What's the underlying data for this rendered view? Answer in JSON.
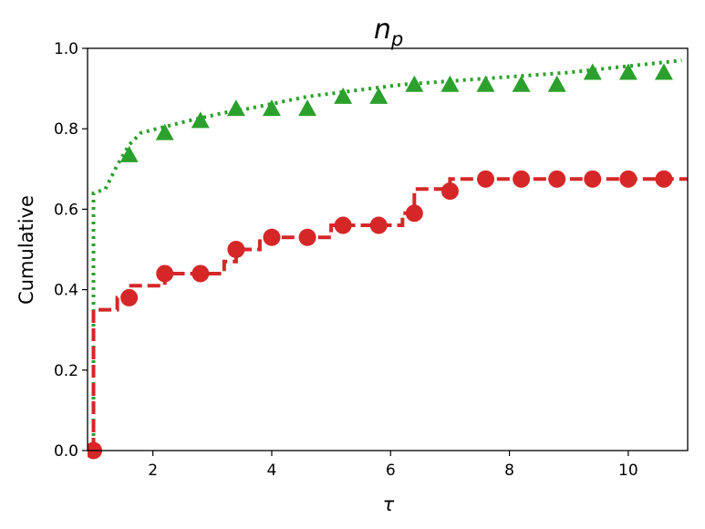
{
  "chart_data": {
    "type": "line",
    "title_main": "n",
    "title_sub": "p",
    "xlabel": "τ",
    "ylabel": "Cumulative",
    "xlim": [
      0.9,
      11.0
    ],
    "ylim": [
      0.0,
      1.0
    ],
    "xticks": [
      2,
      4,
      6,
      8,
      10
    ],
    "xtick_labels": [
      "2",
      "4",
      "6",
      "8",
      "10"
    ],
    "yticks": [
      0.0,
      0.2,
      0.4,
      0.6,
      0.8,
      1.0
    ],
    "ytick_labels": [
      "0.0",
      "0.2",
      "0.4",
      "0.6",
      "0.8",
      "1.0"
    ],
    "grid": false,
    "legend": "none",
    "series": [
      {
        "color": "#2ca02c",
        "line_style": "dotted",
        "marker": "triangle",
        "step": [
          [
            1.0,
            0.0
          ],
          [
            1.0,
            0.35
          ],
          [
            1.0,
            0.64
          ],
          [
            1.2,
            0.65
          ],
          [
            1.4,
            0.71
          ],
          [
            1.6,
            0.76
          ],
          [
            1.8,
            0.79
          ],
          [
            2.6,
            0.82
          ],
          [
            3.2,
            0.84
          ],
          [
            3.6,
            0.85
          ],
          [
            4.6,
            0.88
          ],
          [
            6.2,
            0.91
          ],
          [
            9.0,
            0.94
          ],
          [
            10.9,
            0.97
          ]
        ],
        "markers": [
          [
            1.6,
            0.735
          ],
          [
            2.2,
            0.79
          ],
          [
            2.8,
            0.82
          ],
          [
            3.4,
            0.85
          ],
          [
            4.0,
            0.85
          ],
          [
            4.6,
            0.85
          ],
          [
            5.2,
            0.88
          ],
          [
            5.8,
            0.88
          ],
          [
            6.4,
            0.91
          ],
          [
            7.0,
            0.91
          ],
          [
            7.6,
            0.91
          ],
          [
            8.2,
            0.91
          ],
          [
            8.8,
            0.91
          ],
          [
            9.4,
            0.94
          ],
          [
            10.0,
            0.94
          ],
          [
            10.6,
            0.94
          ]
        ]
      },
      {
        "color": "#d62728",
        "line_style": "dashed",
        "marker": "circle",
        "step": [
          [
            1.0,
            0.0
          ],
          [
            1.0,
            0.35
          ],
          [
            1.4,
            0.35
          ],
          [
            1.4,
            0.38
          ],
          [
            1.6,
            0.38
          ],
          [
            1.6,
            0.41
          ],
          [
            2.2,
            0.41
          ],
          [
            2.2,
            0.44
          ],
          [
            3.2,
            0.44
          ],
          [
            3.2,
            0.47
          ],
          [
            3.4,
            0.47
          ],
          [
            3.4,
            0.5
          ],
          [
            3.8,
            0.5
          ],
          [
            3.8,
            0.53
          ],
          [
            5.0,
            0.53
          ],
          [
            5.0,
            0.56
          ],
          [
            6.2,
            0.56
          ],
          [
            6.2,
            0.59
          ],
          [
            6.4,
            0.59
          ],
          [
            6.4,
            0.65
          ],
          [
            7.0,
            0.65
          ],
          [
            7.0,
            0.675
          ],
          [
            11.0,
            0.675
          ]
        ],
        "markers": [
          [
            1.0,
            0.0
          ],
          [
            1.6,
            0.38
          ],
          [
            2.2,
            0.44
          ],
          [
            2.8,
            0.44
          ],
          [
            3.4,
            0.5
          ],
          [
            4.0,
            0.53
          ],
          [
            4.6,
            0.53
          ],
          [
            5.2,
            0.56
          ],
          [
            5.8,
            0.56
          ],
          [
            6.4,
            0.59
          ],
          [
            7.0,
            0.645
          ],
          [
            7.6,
            0.675
          ],
          [
            8.2,
            0.675
          ],
          [
            8.8,
            0.675
          ],
          [
            9.4,
            0.675
          ],
          [
            10.0,
            0.675
          ],
          [
            10.6,
            0.675
          ]
        ]
      }
    ]
  }
}
